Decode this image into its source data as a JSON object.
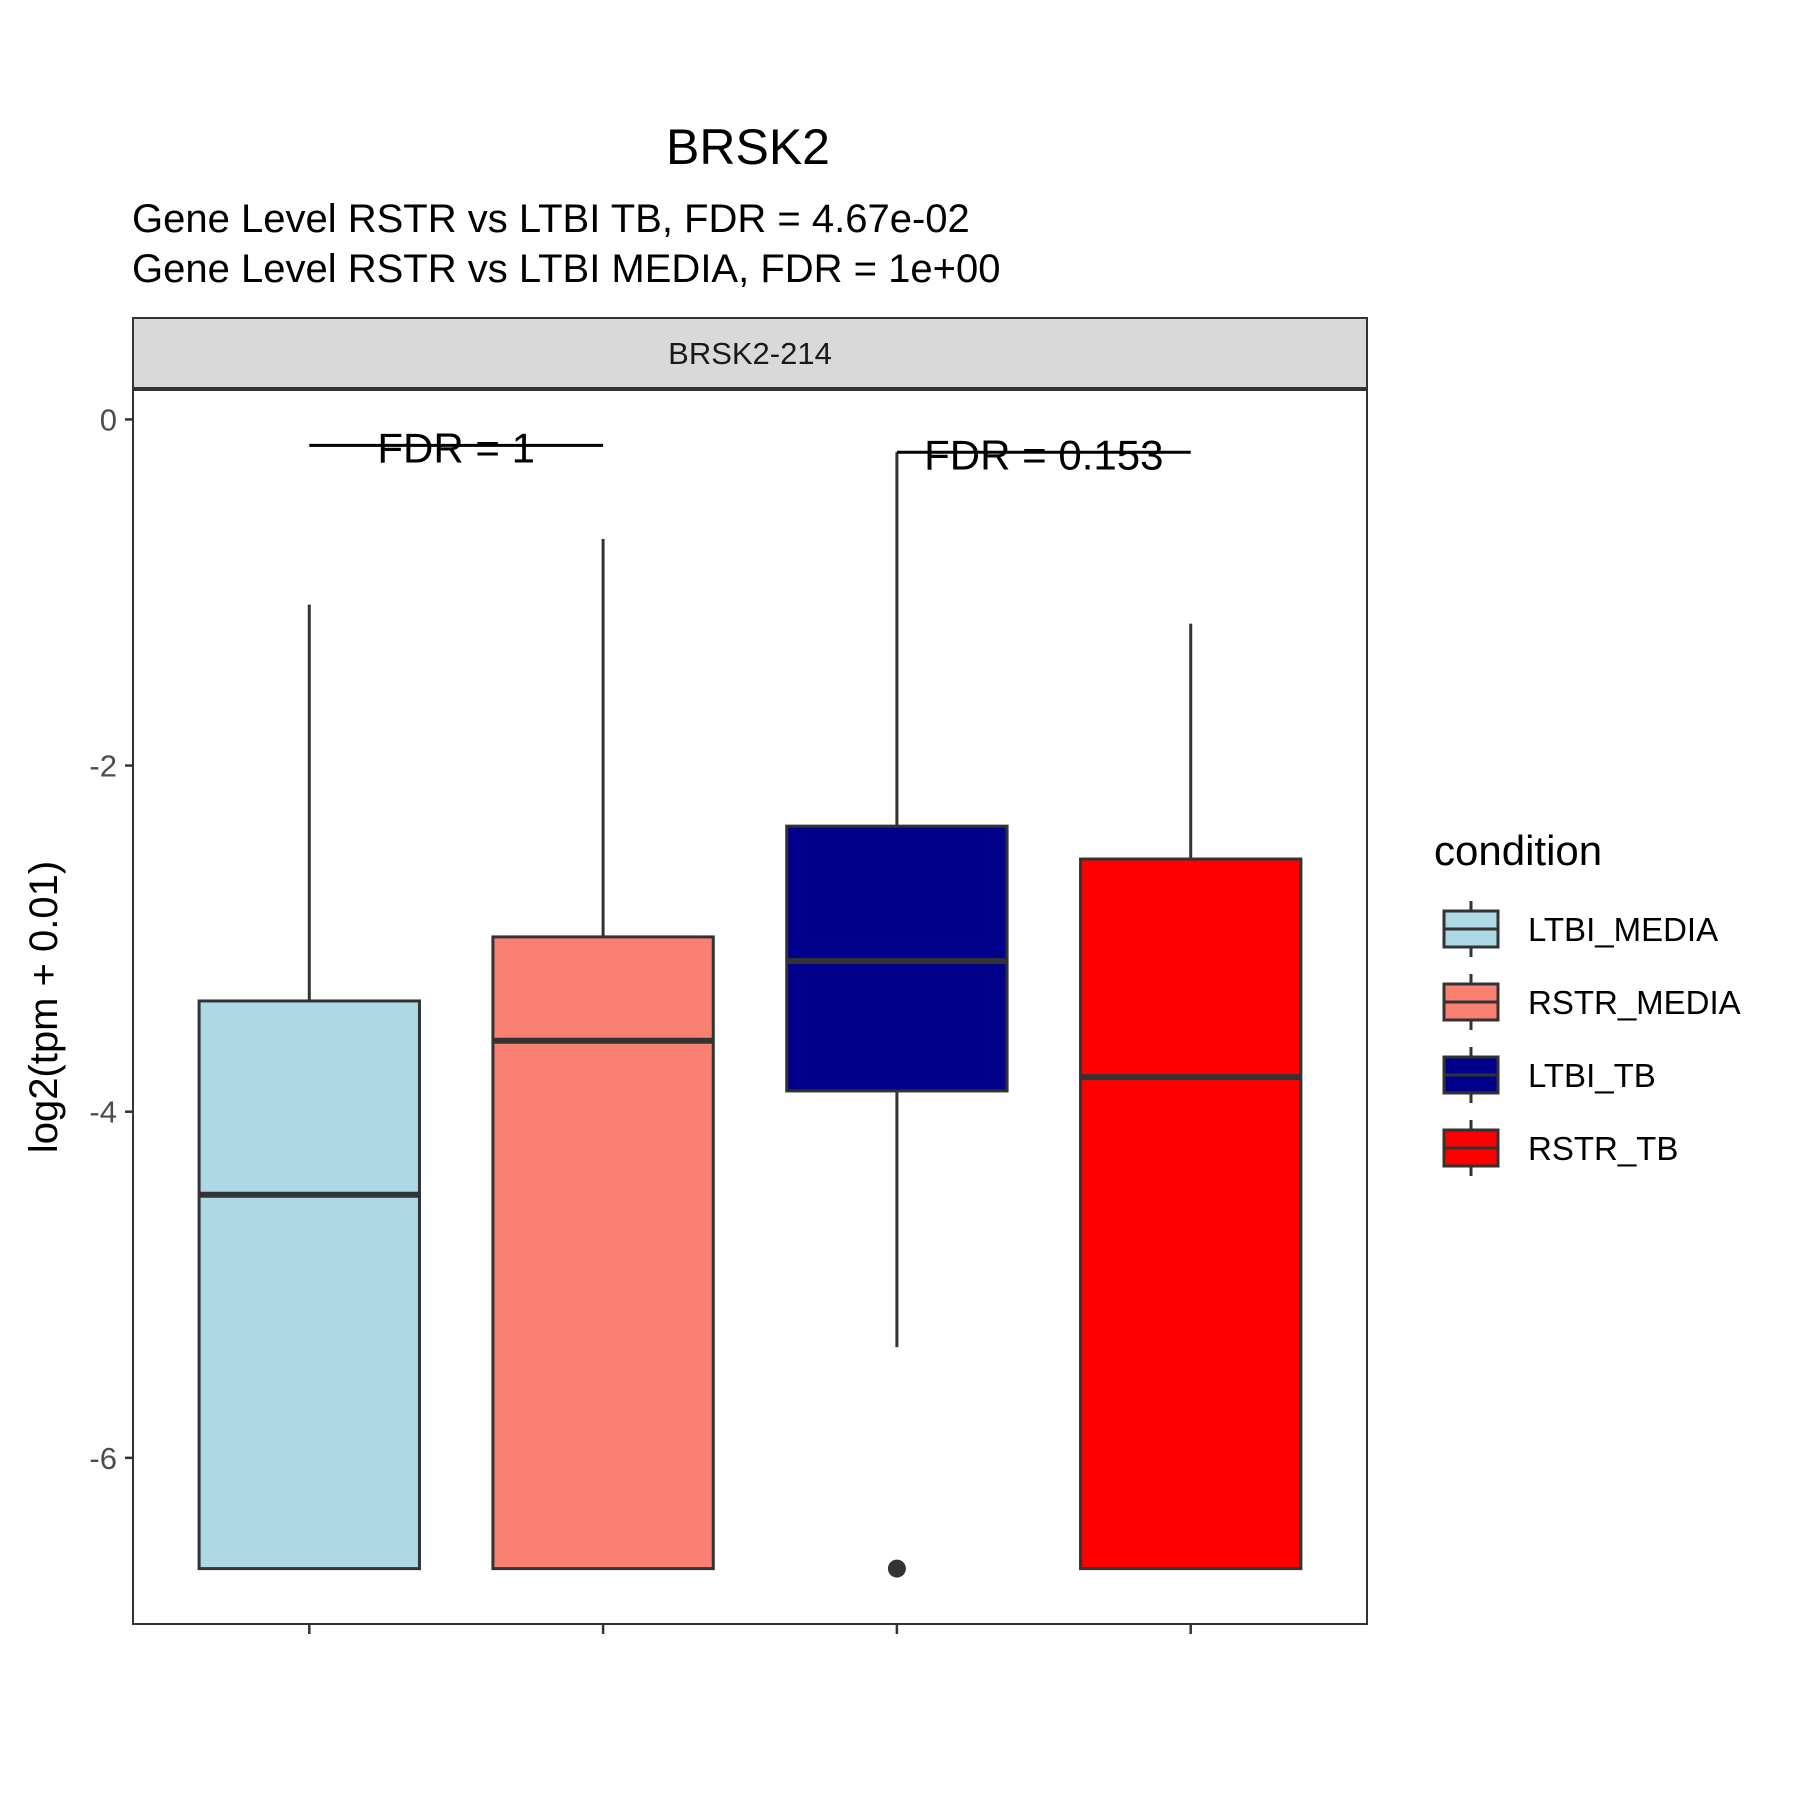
{
  "chart_data": {
    "type": "boxplot",
    "title": "BRSK2",
    "subtitle": [
      "Gene Level RSTR vs LTBI TB, FDR =  4.67e-02",
      "Gene Level RSTR vs LTBI MEDIA, FDR =  1e+00"
    ],
    "facet_label": "BRSK2-214",
    "xlabel": "",
    "ylabel": "log2(tpm + 0.01)",
    "ylim": [
      -6.96,
      0.17
    ],
    "yticks": [
      0,
      -2,
      -4,
      -6
    ],
    "ytick_labels": [
      "0",
      "-2",
      "-4",
      "-6"
    ],
    "grid": false,
    "legend": {
      "title": "condition",
      "position": "right",
      "entries": [
        "LTBI_MEDIA",
        "RSTR_MEDIA",
        "LTBI_TB",
        "RSTR_TB"
      ]
    },
    "series": [
      {
        "name": "LTBI_MEDIA",
        "color": "#ADD8E6",
        "whisker_low": -6.64,
        "q1": -6.64,
        "median": -4.48,
        "q3": -3.36,
        "whisker_high": -1.07,
        "outliers": []
      },
      {
        "name": "RSTR_MEDIA",
        "color": "#FA8072",
        "whisker_low": -6.64,
        "q1": -6.64,
        "median": -3.59,
        "q3": -2.99,
        "whisker_high": -0.69,
        "outliers": []
      },
      {
        "name": "LTBI_TB",
        "color": "#00008B",
        "whisker_low": -5.36,
        "q1": -3.88,
        "median": -3.13,
        "q3": -2.35,
        "whisker_high": -0.19,
        "outliers": [
          -6.64
        ]
      },
      {
        "name": "RSTR_TB",
        "color": "#FF0000",
        "whisker_low": -6.64,
        "q1": -6.64,
        "median": -3.8,
        "q3": -2.54,
        "whisker_high": -1.18,
        "outliers": []
      }
    ],
    "annotations": [
      {
        "label": "FDR =  1",
        "from": 0,
        "to": 1,
        "y": -0.15
      },
      {
        "label": "FDR =  0.153",
        "from": 2,
        "to": 3,
        "y": -0.19
      }
    ]
  }
}
